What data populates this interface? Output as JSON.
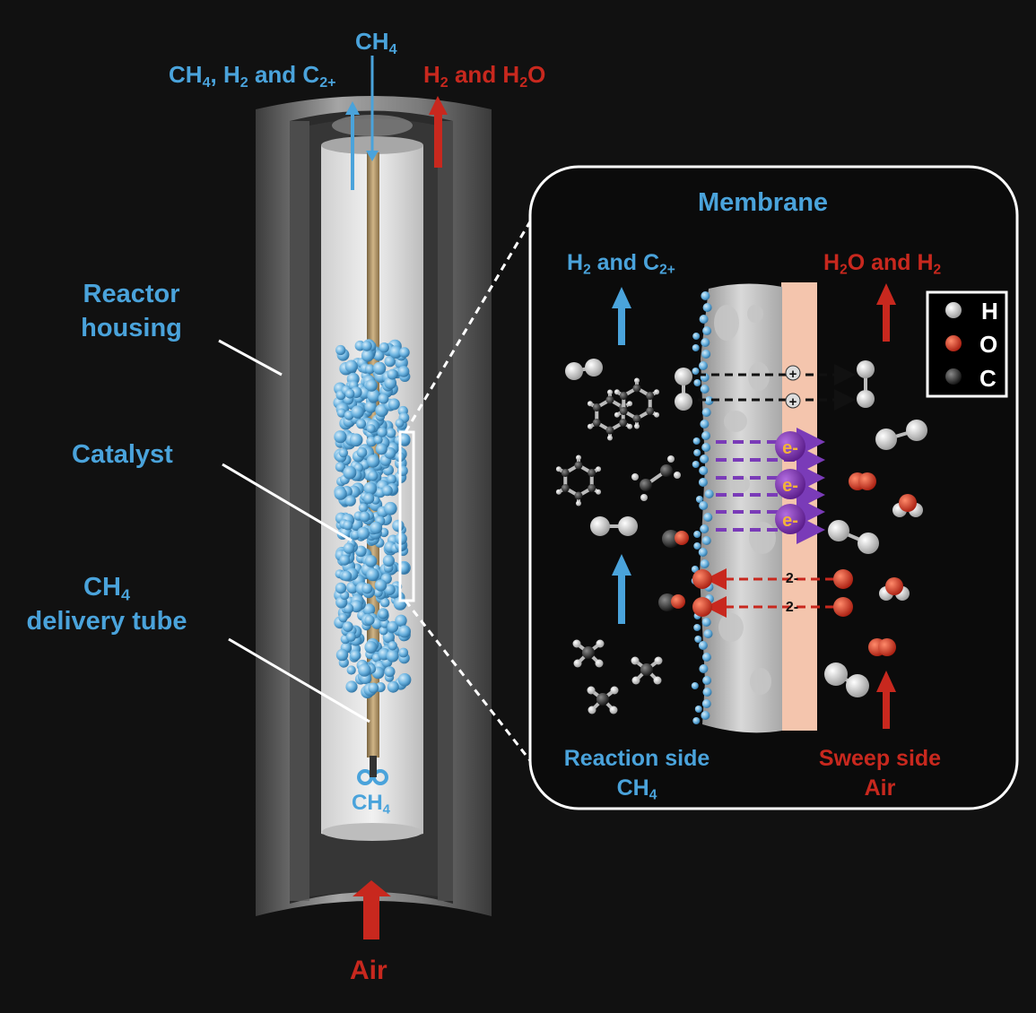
{
  "colors": {
    "accent_blue": "#4aa3db",
    "accent_red": "#c8281e",
    "background": "#111111"
  },
  "reactor": {
    "top_feed": {
      "species": "CH",
      "sub": "4"
    },
    "top_outlet": {
      "a": "CH",
      "a_sub": "4",
      "b": ", H",
      "b_sub": "2",
      "c": " and C",
      "c_sub": "2+"
    },
    "sweep_outlet": {
      "a": "H",
      "a_sub": "2",
      "b": " and H",
      "b_sub": "2",
      "c": "O"
    },
    "bottom_feed": {
      "species": "CH",
      "sub": "4"
    },
    "air_inlet": "Air"
  },
  "callouts": {
    "housing": [
      "Reactor",
      "housing"
    ],
    "catalyst": "Catalyst",
    "delivery_tube": {
      "l1": "CH",
      "l1_sub": "4",
      "l2": "delivery tube"
    }
  },
  "inset": {
    "title": "Membrane",
    "reaction_out": {
      "a": "H",
      "a_sub": "2",
      "b": " and C",
      "b_sub": "2+"
    },
    "sweep_out": {
      "a": "H",
      "a_sub": "2",
      "b": "O and H",
      "b_sub": "2"
    },
    "reaction_side": {
      "l1": "Reaction side",
      "l2": "CH",
      "l2_sub": "4"
    },
    "sweep_side": {
      "l1": "Sweep side",
      "l2": "Air"
    },
    "proton_charge": "+",
    "electron_label": "e-",
    "oxide_charge": "2-",
    "legend": [
      {
        "symbol": "H",
        "color": "#f0f0f0"
      },
      {
        "symbol": "O",
        "color": "#d23a24"
      },
      {
        "symbol": "C",
        "color": "#3a3a3a"
      }
    ]
  }
}
